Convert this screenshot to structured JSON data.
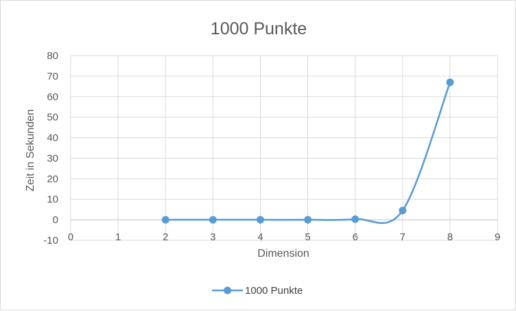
{
  "chart_data": {
    "type": "line",
    "title": "1000 Punkte",
    "xlabel": "Dimension",
    "ylabel": "Zeit in Sekunden",
    "xlim": [
      0,
      9
    ],
    "ylim": [
      -10,
      80
    ],
    "x_ticks": [
      0,
      1,
      2,
      3,
      4,
      5,
      6,
      7,
      8,
      9
    ],
    "y_ticks": [
      -10,
      0,
      10,
      20,
      30,
      40,
      50,
      60,
      70,
      80
    ],
    "grid": true,
    "smooth": true,
    "legend_position": "bottom",
    "series": [
      {
        "name": "1000 Punkte",
        "color": "#5b9bd5",
        "marker": "circle",
        "x": [
          2,
          3,
          4,
          5,
          6,
          7,
          8
        ],
        "y": [
          0.0,
          0.0,
          0.0,
          0.0,
          0.3,
          4.5,
          67
        ]
      }
    ]
  }
}
